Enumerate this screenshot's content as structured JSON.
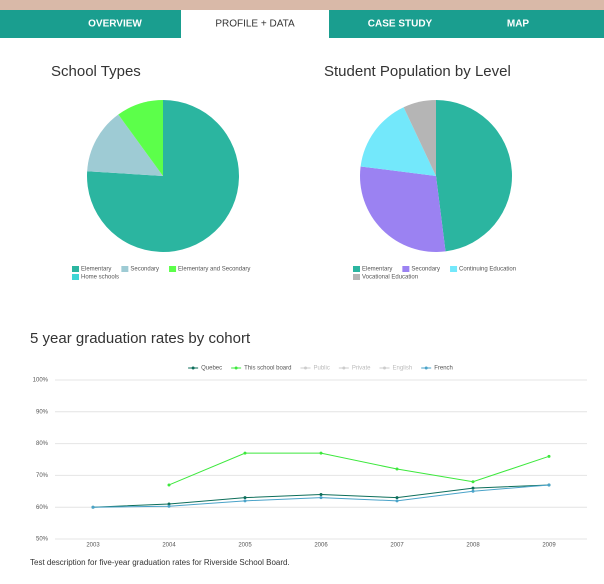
{
  "nav": {
    "tabs": [
      "OVERVIEW",
      "PROFILE + DATA",
      "CASE STUDY",
      "MAP"
    ],
    "active": 1
  },
  "chart_data": [
    {
      "type": "pie",
      "title": "School Types",
      "categories": [
        "Elementary",
        "Secondary",
        "Elementary and Secondary",
        "Home schools"
      ],
      "values": [
        76,
        14,
        10,
        0
      ],
      "colors": [
        "#2bb5a0",
        "#9ecbd4",
        "#5cff4a",
        "#3fd6d6"
      ]
    },
    {
      "type": "pie",
      "title": "Student Population by Level",
      "categories": [
        "Elementary",
        "Secondary",
        "Continuing Education",
        "Vocational Education"
      ],
      "values": [
        48,
        29,
        16,
        7
      ],
      "colors": [
        "#2bb5a0",
        "#9b82f2",
        "#73e8fb",
        "#b5b5b5"
      ]
    },
    {
      "type": "line",
      "title": "5 year graduation rates by cohort",
      "categories": [
        "2003",
        "2004",
        "2005",
        "2006",
        "2007",
        "2008",
        "2009"
      ],
      "series": [
        {
          "name": "Quebec",
          "color": "#0d6e5a",
          "values": [
            60,
            61,
            63,
            64,
            63,
            66,
            67
          ]
        },
        {
          "name": "This school board",
          "color": "#3ce83c",
          "values": [
            null,
            67,
            77,
            77,
            72,
            68,
            76
          ]
        },
        {
          "name": "Public",
          "color": "#cccccc",
          "hidden": true,
          "values": [
            null,
            null,
            null,
            null,
            null,
            null,
            null
          ]
        },
        {
          "name": "Private",
          "color": "#cccccc",
          "hidden": true,
          "values": [
            null,
            null,
            null,
            null,
            null,
            null,
            null
          ]
        },
        {
          "name": "English",
          "color": "#cccccc",
          "hidden": true,
          "values": [
            null,
            null,
            null,
            null,
            null,
            null,
            null
          ]
        },
        {
          "name": "French",
          "color": "#4aa3c9",
          "values": [
            60,
            60.3,
            62,
            63,
            62,
            65,
            67
          ]
        }
      ],
      "ylim": [
        50,
        100
      ],
      "yticks": [
        {
          "value": 50,
          "label": "50%"
        },
        {
          "value": 60,
          "label": "60%"
        },
        {
          "value": 70,
          "label": "70%"
        },
        {
          "value": 80,
          "label": "80%"
        },
        {
          "value": 90,
          "label": "90%"
        },
        {
          "value": 100,
          "label": "100%"
        }
      ],
      "grid": true
    }
  ],
  "description": "Test description for five-year graduation rates for Riverside School Board."
}
